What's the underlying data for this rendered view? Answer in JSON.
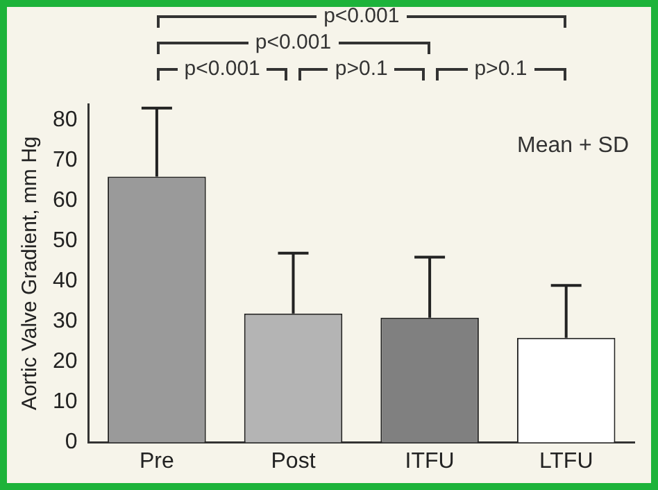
{
  "chart_data": {
    "type": "bar",
    "ylabel": "Aortic Valve Gradient, mm Hg",
    "categories": [
      "Pre",
      "Post",
      "ITFU",
      "LTFU"
    ],
    "values": [
      66,
      32,
      31,
      26
    ],
    "colors": [
      "#9a9a9a",
      "#b4b4b4",
      "#808080",
      "#ffffff"
    ],
    "errors": [
      [
        66,
        83
      ],
      [
        32,
        47
      ],
      [
        31,
        46
      ],
      [
        26,
        39
      ]
    ],
    "ylim": [
      0,
      84
    ],
    "yticks": [
      0,
      10,
      20,
      30,
      40,
      50,
      60,
      70,
      80
    ],
    "grid": false,
    "legend": false,
    "annotations": [
      "p<0.001",
      "p>0.1",
      "p>0.1",
      "p<0.001",
      "p<0.001",
      "Mean + SD"
    ]
  }
}
